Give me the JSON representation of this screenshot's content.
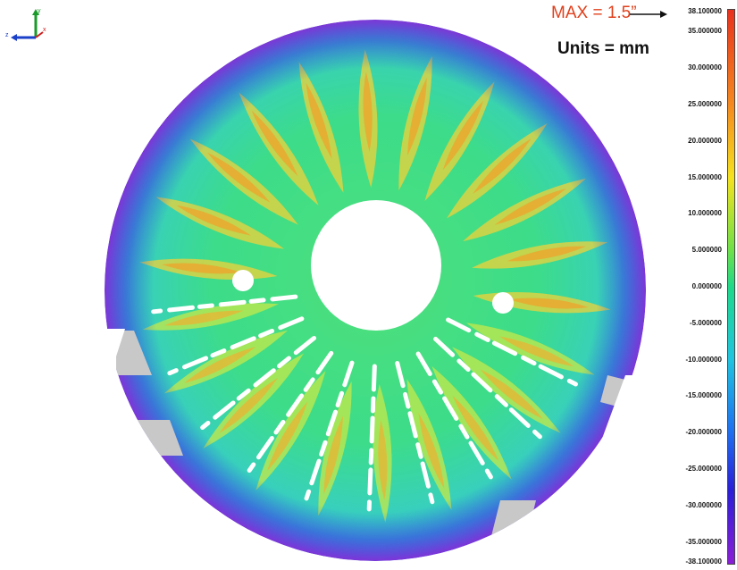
{
  "annotations": {
    "max_label": "MAX = 1.5”",
    "units_label": "Units = mm"
  },
  "axis_triad": {
    "y": "y",
    "z": "z",
    "x": "x"
  },
  "colorbar": {
    "ticks": [
      "38.100000",
      "35.000000",
      "30.000000",
      "25.000000",
      "20.000000",
      "15.000000",
      "10.000000",
      "5.000000",
      "0.000000",
      "-5.000000",
      "-10.000000",
      "-15.000000",
      "-20.000000",
      "-25.000000",
      "-30.000000",
      "-35.000000",
      "-38.100000"
    ],
    "values": [
      38.1,
      35,
      30,
      25,
      20,
      15,
      10,
      5,
      0,
      -5,
      -10,
      -15,
      -20,
      -25,
      -30,
      -35,
      -38.1
    ],
    "range": [
      -38.1,
      38.1
    ],
    "gradient_stops": [
      {
        "value": 38.1,
        "color": "#e8321e"
      },
      {
        "value": 25,
        "color": "#f58a1f"
      },
      {
        "value": 15,
        "color": "#f5e21f"
      },
      {
        "value": 5,
        "color": "#6fe04a"
      },
      {
        "value": 0,
        "color": "#1fd98a"
      },
      {
        "value": -10,
        "color": "#1fc4e0"
      },
      {
        "value": -20,
        "color": "#1f6ff0"
      },
      {
        "value": -28,
        "color": "#2a1fd6"
      },
      {
        "value": -38.1,
        "color": "#8a1fd6"
      }
    ]
  },
  "colors": {
    "background": "#ffffff",
    "max_label": "#e0401c",
    "below_range": "#c8c8c8"
  }
}
